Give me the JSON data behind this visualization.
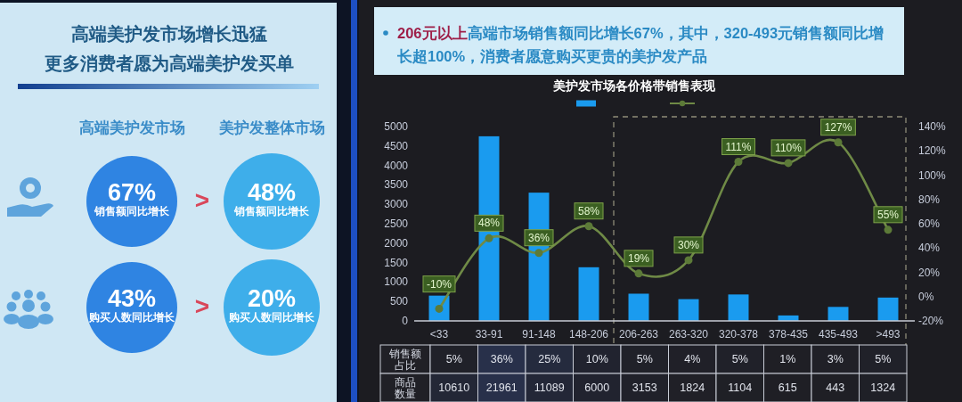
{
  "chart_data": [
    {
      "type": "other",
      "title": "高端美护发市场增长迅猛",
      "subtitle": "更多消费者愿为高端美护发买单",
      "annotations": [
        "高端美护发市场",
        "美护发整体市场",
        "67%",
        "销售额同比增长",
        ">",
        "48%",
        "销售额同比增长",
        "43%",
        "购买人数同比增长",
        ">",
        "20%",
        "购买人数同比增长"
      ]
    },
    {
      "type": "bar",
      "title": "美护发市场各价格带销售表现",
      "annotations": [
        "**206元以上**高端市场销售额同比增长67%，其中，320-493元销售额同比增长超100%，消费者愿意购买更贵的美护发产品"
      ],
      "categories": [
        "<33",
        "33-91",
        "91-148",
        "148-206",
        "206-263",
        "263-320",
        "320-378",
        "378-435",
        "435-493",
        ">493"
      ],
      "series": [
        {
          "color": "#1a9bef",
          "values": [
            650,
            4750,
            3300,
            1380,
            700,
            560,
            680,
            140,
            360,
            600
          ]
        },
        {
          "type": "line",
          "axis": "y2",
          "color": "#6f8a46",
          "values": [
            -10,
            48,
            36,
            58,
            19,
            30,
            111,
            110,
            127,
            55
          ],
          "value_labels": [
            "-10%",
            "48%",
            "36%",
            "58%",
            "19%",
            "30%",
            "111%",
            "110%",
            "127%",
            "55%"
          ]
        }
      ],
      "ylim": [
        0,
        5000
      ],
      "yticks": [
        0,
        500,
        1000,
        1500,
        2000,
        2500,
        3000,
        3500,
        4000,
        4500,
        5000
      ],
      "y2lim": [
        -20,
        140
      ],
      "y2ticks": [
        {
          "value": -20,
          "label": "-20%"
        },
        {
          "value": 0,
          "label": "0%"
        },
        {
          "value": 20,
          "label": "20%"
        },
        {
          "value": 40,
          "label": "40%"
        },
        {
          "value": 60,
          "label": "60%"
        },
        {
          "value": 80,
          "label": "80%"
        },
        {
          "value": 100,
          "label": "100%"
        },
        {
          "value": 120,
          "label": "120%"
        },
        {
          "value": 140,
          "label": "140%"
        }
      ],
      "marker": "circle"
    },
    {
      "type": "heatmap",
      "categories": [
        null,
        null,
        null,
        null,
        null,
        null,
        null,
        null,
        null,
        null
      ],
      "y_categories": [
        "销售额占比",
        "商品数量"
      ],
      "cells": [
        [
          5,
          36,
          25,
          10,
          5,
          4,
          5,
          1,
          3,
          5
        ],
        [
          10610,
          21961,
          11089,
          6000,
          3153,
          1824,
          1104,
          615,
          443,
          1324
        ]
      ],
      "cell_labels": [
        [
          "5%",
          "36%",
          "25%",
          "10%",
          "5%",
          "4%",
          "5%",
          "1%",
          "3%",
          "5%"
        ],
        [
          "10610",
          "21961",
          "11089",
          "6000",
          "3153",
          "1824",
          "1104",
          "615",
          "443",
          "1324"
        ]
      ]
    }
  ]
}
